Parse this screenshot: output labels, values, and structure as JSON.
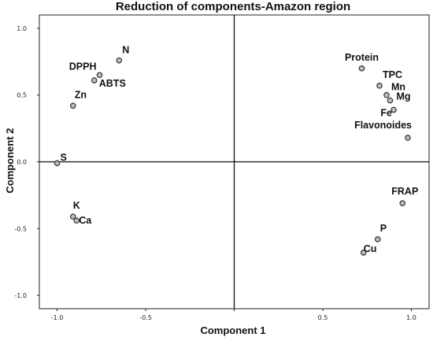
{
  "chart_data": {
    "type": "scatter",
    "title": "Reduction of components-Amazon region",
    "xlabel": "Component 1",
    "ylabel": "Component 2",
    "xlim": [
      -1.1,
      1.1
    ],
    "ylim": [
      -1.1,
      1.1
    ],
    "xticks": [
      {
        "value": -1.0,
        "label": "-1.0"
      },
      {
        "value": -0.5,
        "label": "-0.5"
      },
      {
        "value": 0.0,
        "label": "0.0"
      },
      {
        "value": 0.5,
        "label": "0.5"
      },
      {
        "value": 1.0,
        "label": "1.0"
      }
    ],
    "yticks": [
      {
        "value": 1.0,
        "label": "1.0"
      },
      {
        "value": 0.5,
        "label": "0.5"
      },
      {
        "value": 0.0,
        "label": "0.0"
      },
      {
        "value": -0.5,
        "label": "-0.5"
      },
      {
        "value": -1.0,
        "label": "-1.0"
      }
    ],
    "reference_lines": {
      "x": 0,
      "y": 0
    },
    "grid": false,
    "legend": "none",
    "point_style": {
      "fill": "#bdbdbd",
      "stroke": "#333333"
    },
    "points": [
      {
        "label": "N",
        "x": -0.65,
        "y": 0.76
      },
      {
        "label": "DPPH",
        "x": -0.76,
        "y": 0.65
      },
      {
        "label": "ABTS",
        "x": -0.79,
        "y": 0.61
      },
      {
        "label": "Zn",
        "x": -0.91,
        "y": 0.42
      },
      {
        "label": "S",
        "x": -1.0,
        "y": -0.01
      },
      {
        "label": "K",
        "x": -0.91,
        "y": -0.41
      },
      {
        "label": "Ca",
        "x": -0.89,
        "y": -0.44
      },
      {
        "label": "Protein",
        "x": 0.72,
        "y": 0.7
      },
      {
        "label": "TPC",
        "x": 0.82,
        "y": 0.57
      },
      {
        "label": "Mn",
        "x": 0.86,
        "y": 0.5
      },
      {
        "label": "Mg",
        "x": 0.88,
        "y": 0.46
      },
      {
        "label": "Fe",
        "x": 0.9,
        "y": 0.39
      },
      {
        "label": "Flavonoides",
        "x": 0.98,
        "y": 0.18
      },
      {
        "label": "FRAP",
        "x": 0.95,
        "y": -0.31
      },
      {
        "label": "P",
        "x": 0.81,
        "y": -0.58
      },
      {
        "label": "Cu",
        "x": 0.73,
        "y": -0.68
      }
    ]
  }
}
